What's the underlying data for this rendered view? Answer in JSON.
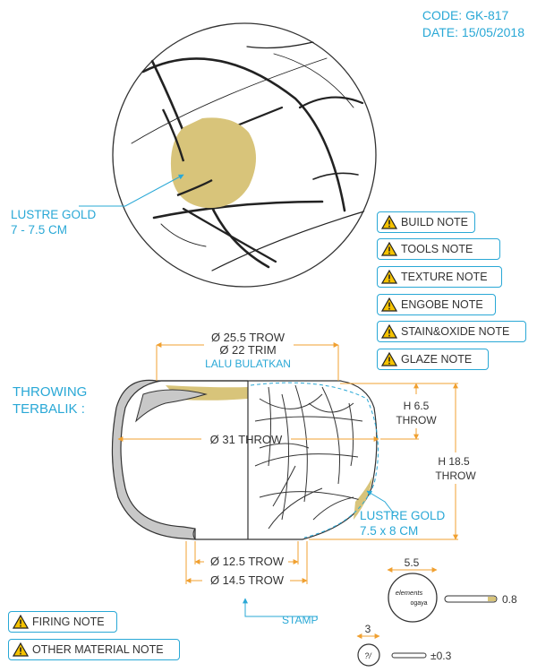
{
  "header": {
    "code": "CODE: GK-817",
    "date": "DATE: 15/05/2018"
  },
  "top_view": {
    "lustre_label_line1": "LUSTRE GOLD",
    "lustre_label_line2": "7 - 7.5 CM"
  },
  "notes": [
    {
      "label": "BUILD NOTE"
    },
    {
      "label": "TOOLS NOTE"
    },
    {
      "label": "TEXTURE NOTE"
    },
    {
      "label": "ENGOBE NOTE"
    },
    {
      "label": "STAIN&OXIDE NOTE"
    },
    {
      "label": "GLAZE NOTE"
    }
  ],
  "bottom_notes": [
    {
      "label": "FIRING NOTE"
    },
    {
      "label": "OTHER MATERIAL NOTE"
    }
  ],
  "section": {
    "throwing_line1": "THROWING",
    "throwing_line2": "TERBALIK :",
    "dim_top_1": "Ø 25.5 TROW",
    "dim_top_2": "Ø 22 TRIM",
    "dim_top_3": "LALU BULATKAN",
    "dim_mid": "Ø 31 THROW",
    "dim_h1_line1": "H 6.5",
    "dim_h1_line2": "THROW",
    "dim_h2_line1": "H 18.5",
    "dim_h2_line2": "THROW",
    "lustre_line1": "LUSTRE GOLD",
    "lustre_line2": "7.5 x 8 CM",
    "dim_base_1": "Ø 12.5 TROW",
    "dim_base_2": "Ø 14.5 TROW",
    "stamp_label": "STAMP"
  },
  "stamp": {
    "width": "5.5",
    "thickness": "0.8",
    "logo_top": "elements",
    "logo_bottom": "ogaya"
  },
  "signature": {
    "width": "3",
    "thickness": "±0.3",
    "mark": "?/"
  },
  "colors": {
    "accent": "#29a8d6",
    "dimension": "#f0a030",
    "lustre_gold": "#d8c47a",
    "body_grey": "#c8c8c8",
    "outline": "#333333"
  }
}
